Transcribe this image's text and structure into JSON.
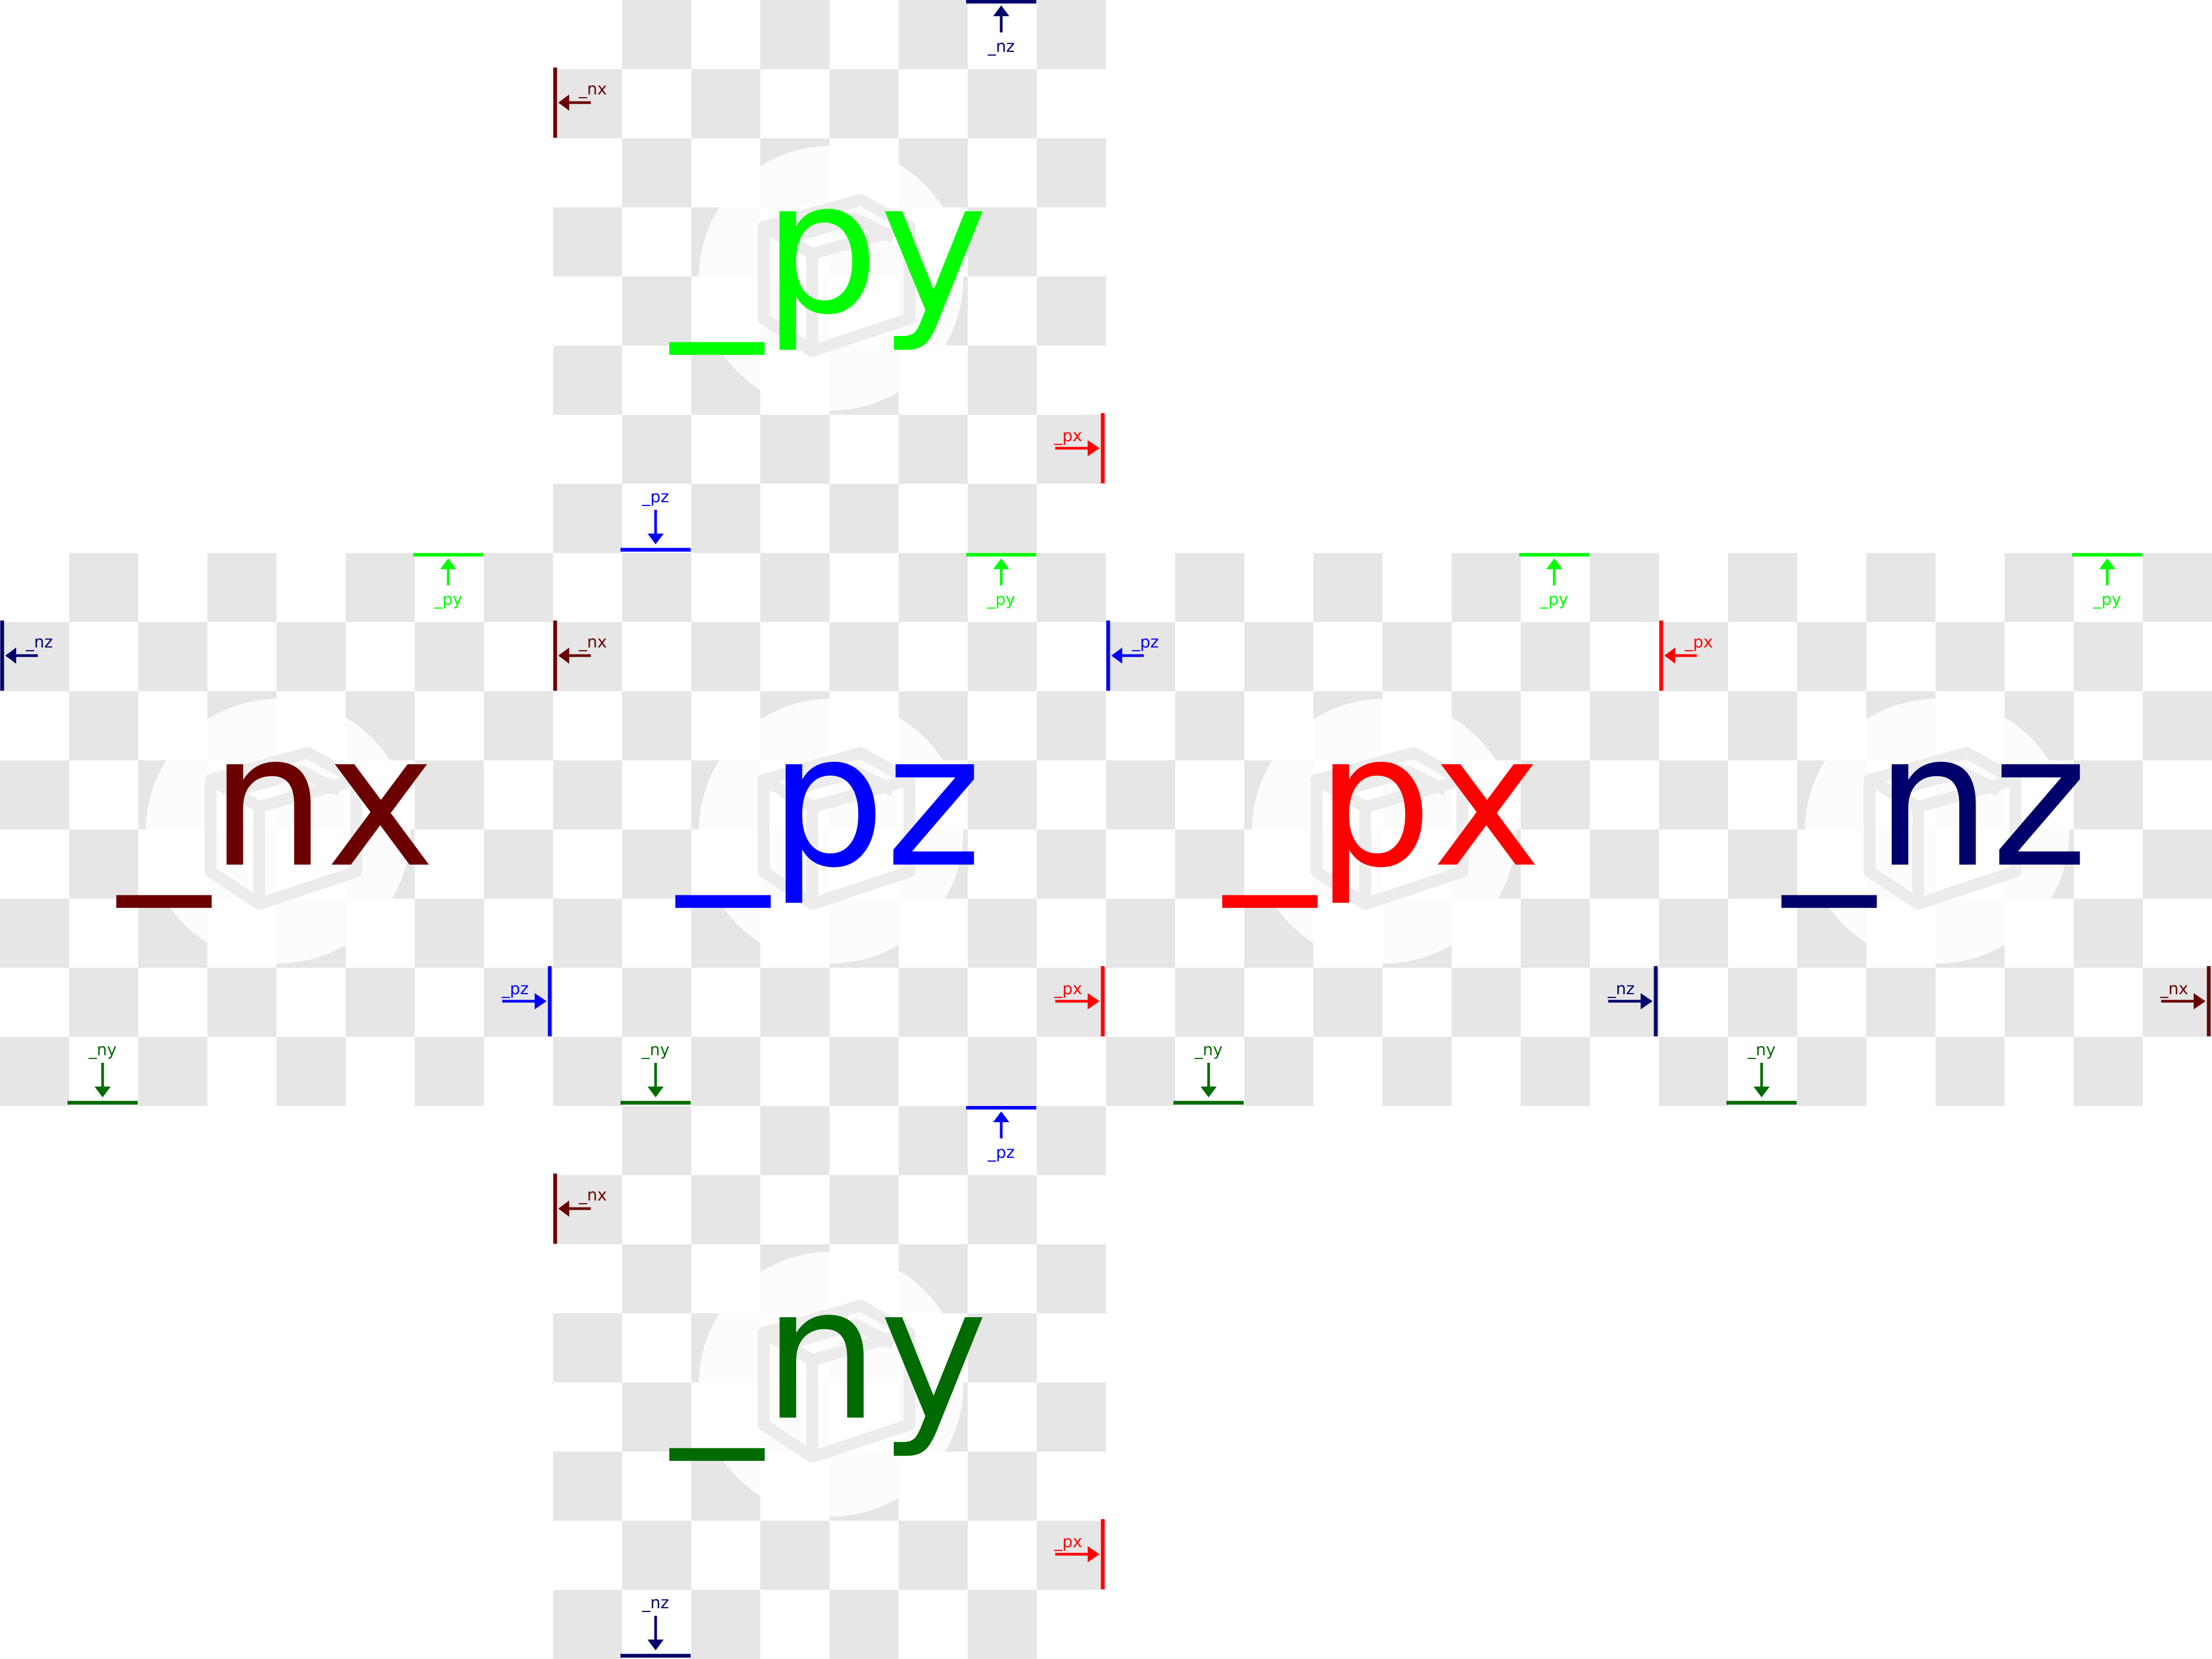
{
  "colors": {
    "px": "#ff0000",
    "nx": "#6b0000",
    "py": "#00ff00",
    "ny": "#006b00",
    "pz": "#0000ff",
    "nz": "#00006b",
    "checker": "#e6e6e6",
    "emblem": "#ffffff"
  },
  "icon": "cube-logo-icon",
  "faces": {
    "py": {
      "label": "_py",
      "top": "_nz",
      "left": "_nx",
      "right": "_px",
      "bottom": "_pz"
    },
    "nx": {
      "label": "_nx",
      "top": "_py",
      "left": "_nz",
      "right": "_pz",
      "bottom": "_ny"
    },
    "pz": {
      "label": "_pz",
      "top": "_py",
      "left": "_nx",
      "right": "_px",
      "bottom": "_ny"
    },
    "px": {
      "label": "_px",
      "top": "_py",
      "left": "_pz",
      "right": "_nz",
      "bottom": "_ny"
    },
    "nz": {
      "label": "_nz",
      "top": "_py",
      "left": "_px",
      "right": "_nx",
      "bottom": "_ny"
    },
    "ny": {
      "label": "_ny",
      "top": "_pz",
      "left": "_nx",
      "right": "_px",
      "bottom": "_nz"
    }
  }
}
